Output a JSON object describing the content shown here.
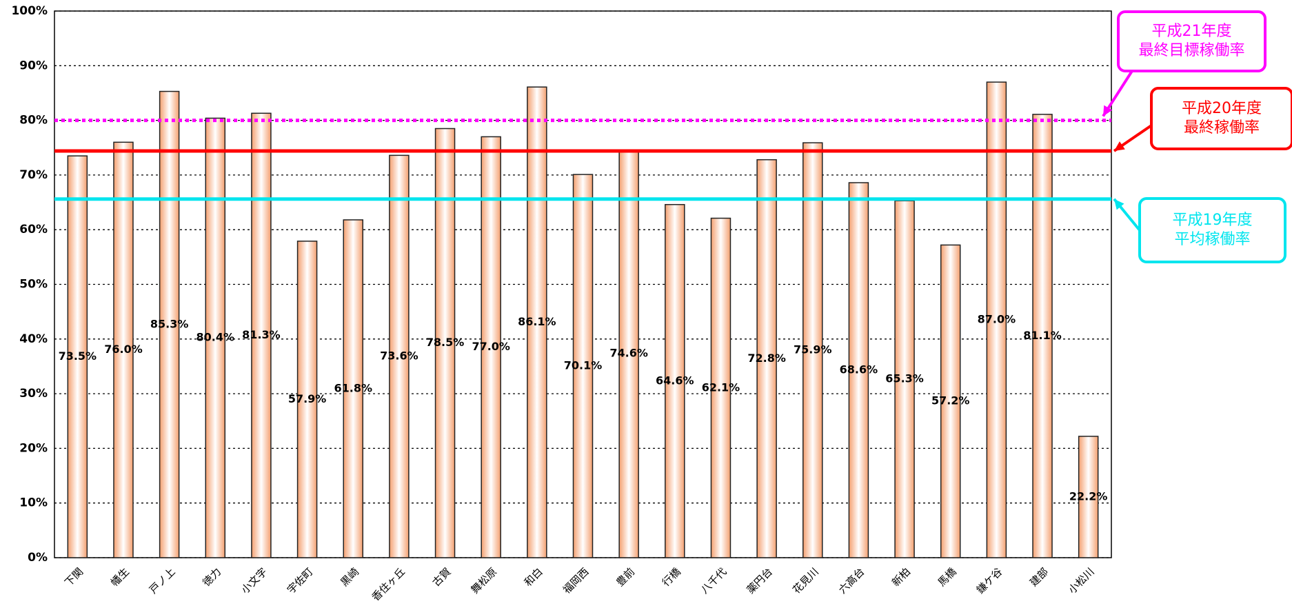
{
  "chart_data": {
    "type": "bar",
    "categories": [
      "下関",
      "幡生",
      "戸ノ上",
      "徳力",
      "小文字",
      "宇佐町",
      "黒崎",
      "香住ヶ丘",
      "古賀",
      "舞松原",
      "和白",
      "福岡西",
      "豊前",
      "行橋",
      "八千代",
      "薬円台",
      "花見川",
      "六高台",
      "新柏",
      "馬橋",
      "鎌ケ谷",
      "建部",
      "小松川"
    ],
    "values": [
      73.5,
      76.0,
      85.3,
      80.4,
      81.3,
      57.9,
      61.8,
      73.6,
      78.5,
      77.0,
      86.1,
      70.1,
      74.6,
      64.6,
      62.1,
      72.8,
      75.9,
      68.6,
      65.3,
      57.2,
      87.0,
      81.1,
      22.2
    ],
    "value_labels": [
      "73.5%",
      "76.0%",
      "85.3%",
      "80.4%",
      "81.3%",
      "57.9%",
      "61.8%",
      "73.6%",
      "78.5%",
      "77.0%",
      "86.1%",
      "70.1%",
      "74.6%",
      "64.6%",
      "62.1%",
      "72.8%",
      "75.9%",
      "68.6%",
      "65.3%",
      "57.2%",
      "87.0%",
      "81.1%",
      "22.2%"
    ],
    "color": "#f4a070",
    "ylim": [
      0,
      100
    ],
    "yticks": [
      {
        "value": 0,
        "label": "0%"
      },
      {
        "value": 10,
        "label": "10%"
      },
      {
        "value": 20,
        "label": "20%"
      },
      {
        "value": 30,
        "label": "30%"
      },
      {
        "value": 40,
        "label": "40%"
      },
      {
        "value": 50,
        "label": "50%"
      },
      {
        "value": 60,
        "label": "60%"
      },
      {
        "value": 70,
        "label": "70%"
      },
      {
        "value": 80,
        "label": "80%"
      },
      {
        "value": 90,
        "label": "90%"
      },
      {
        "value": 100,
        "label": "100%"
      }
    ],
    "grid": true,
    "reference_lines": [
      {
        "value": 80,
        "color": "#ff00ff",
        "style": "dotted",
        "label": [
          "平成21年度",
          "最終目標稼働率"
        ]
      },
      {
        "value": 74.4,
        "color": "#ff0000",
        "style": "solid",
        "label": [
          "平成20年度",
          "最終稼働率"
        ]
      },
      {
        "value": 65.6,
        "color": "#00e5ee",
        "style": "solid",
        "label": [
          "平成19年度",
          "平均稼働率"
        ]
      }
    ]
  }
}
